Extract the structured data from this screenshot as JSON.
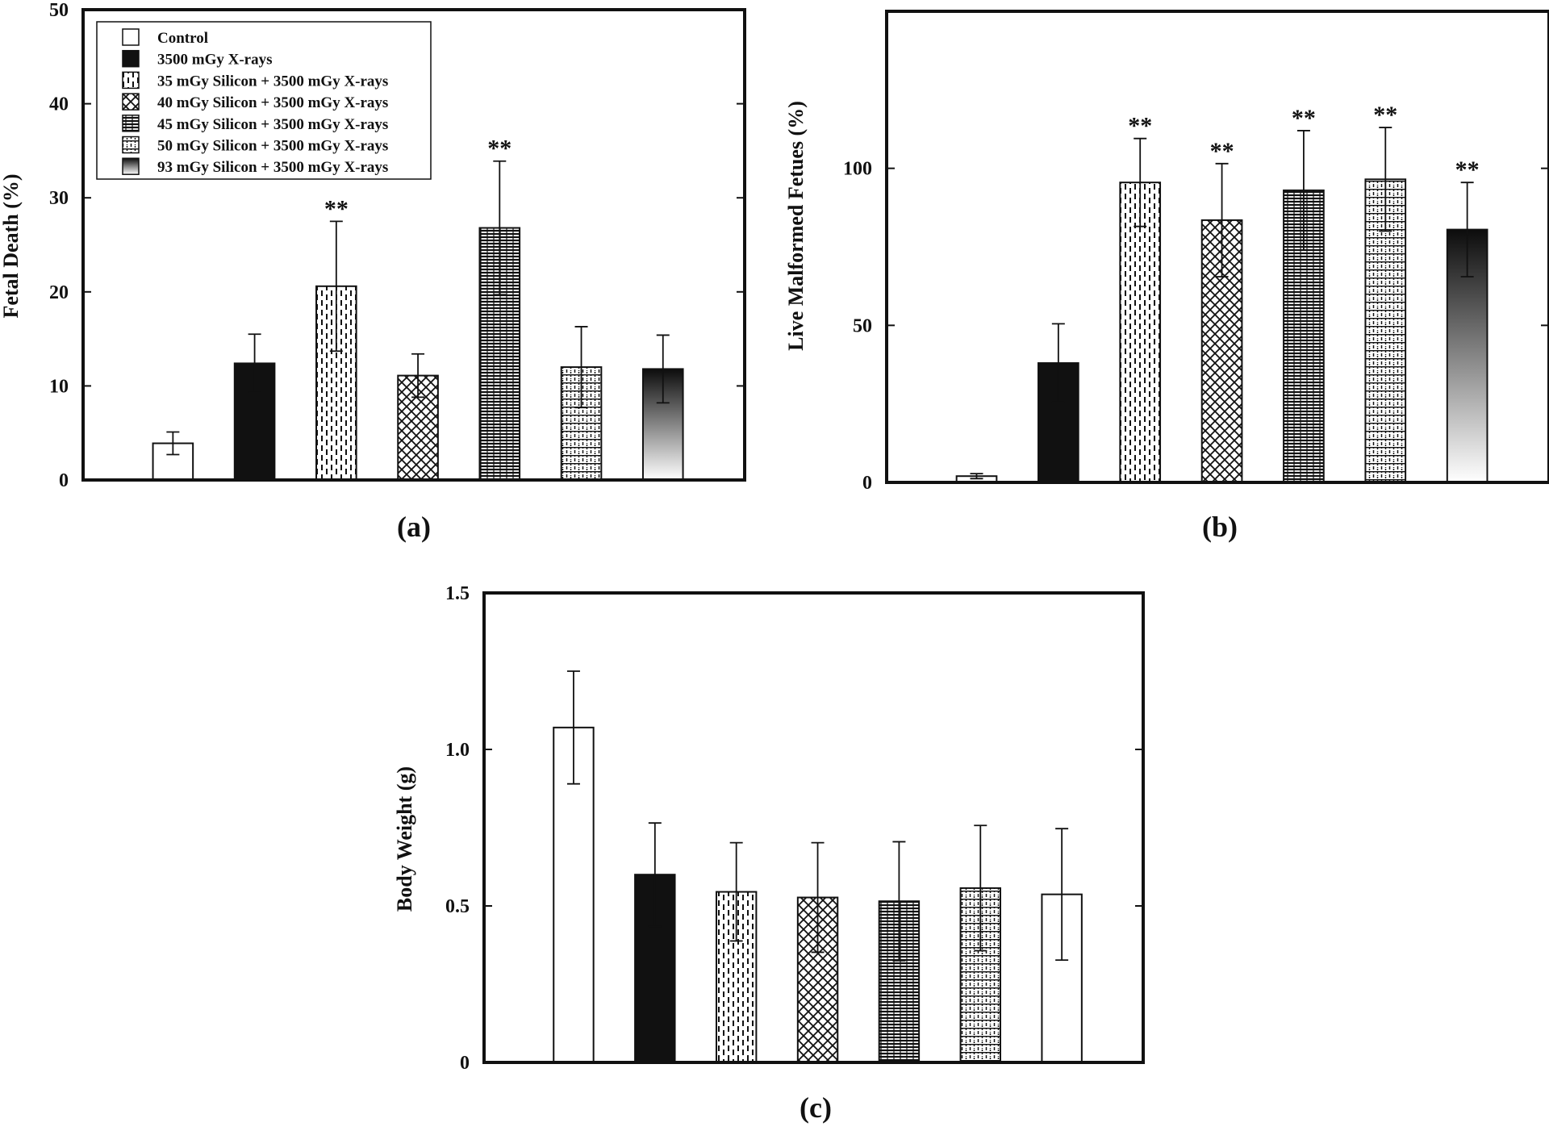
{
  "legend": [
    "Control",
    "3500 mGy X-rays",
    "35 mGy Silicon + 3500 mGy X-rays",
    "40 mGy Silicon + 3500 mGy X-rays",
    "45 mGy Silicon + 3500 mGy X-rays",
    "50 mGy Silicon + 3500 mGy X-rays",
    "93 mGy Silicon + 3500 mGy X-rays"
  ],
  "chart_data": [
    {
      "type": "bar",
      "panel_label": "(a)",
      "ylabel": "Fetal Death (%)",
      "ylim": [
        0,
        50
      ],
      "yticks": [
        "0",
        "10",
        "20",
        "30",
        "40",
        "50"
      ],
      "values": [
        3.9,
        12.4,
        20.6,
        11.1,
        26.8,
        12.0,
        11.8
      ],
      "errors": [
        1.2,
        3.1,
        6.9,
        2.3,
        7.1,
        4.3,
        3.6
      ],
      "significance": [
        "",
        "",
        "**",
        "",
        "**",
        "",
        ""
      ]
    },
    {
      "type": "bar",
      "panel_label": "(b)",
      "ylabel": "Live Malformed Fetues (%)",
      "ylim": [
        0,
        150
      ],
      "yticks": [
        "0",
        "50",
        "100"
      ],
      "values": [
        2.0,
        38.0,
        95.5,
        83.5,
        93.0,
        96.5,
        80.5
      ],
      "errors": [
        0.8,
        12.5,
        14.0,
        18.0,
        19.0,
        16.5,
        15.0
      ],
      "significance": [
        "",
        "",
        "**",
        "**",
        "**",
        "**",
        "**"
      ]
    },
    {
      "type": "bar",
      "panel_label": "(c)",
      "ylabel": "Body Weight (g)",
      "ylim": [
        0,
        1.5
      ],
      "yticks": [
        "0",
        "0.5",
        "1.0",
        "1.5"
      ],
      "values": [
        1.07,
        0.6,
        0.545,
        0.527,
        0.515,
        0.557,
        0.537
      ],
      "errors": [
        0.18,
        0.165,
        0.157,
        0.175,
        0.19,
        0.2,
        0.21
      ],
      "significance": [
        "",
        "",
        "",
        "",
        "",
        "",
        ""
      ]
    }
  ]
}
